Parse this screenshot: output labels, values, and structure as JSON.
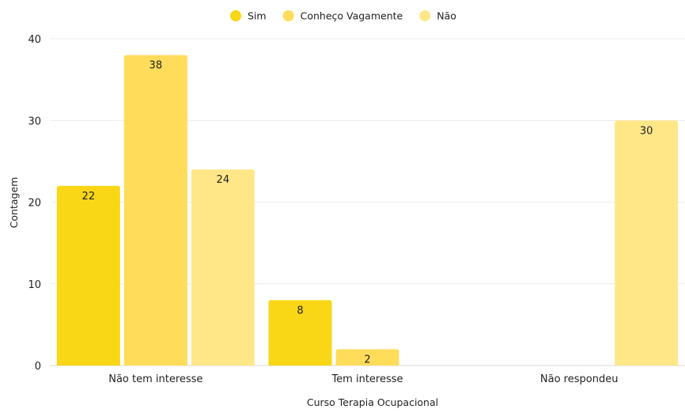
{
  "chart_data": {
    "type": "bar",
    "title": "",
    "xlabel": "Curso Terapia Ocupacional",
    "ylabel": "Contagem",
    "ylim": [
      0,
      40
    ],
    "yticks": [
      0,
      10,
      20,
      30,
      40
    ],
    "grid": true,
    "legend_position": "top-center",
    "categories": [
      "Não tem interesse",
      "Tem interesse",
      "Não respondeu"
    ],
    "series": [
      {
        "name": "Sim",
        "color": "#F9D616",
        "values": [
          22,
          8,
          null
        ]
      },
      {
        "name": "Conheço Vagamente",
        "color": "#FFDD5B",
        "values": [
          38,
          2,
          null
        ]
      },
      {
        "name": "Não",
        "color": "#FFE788",
        "values": [
          24,
          null,
          30
        ]
      }
    ]
  }
}
